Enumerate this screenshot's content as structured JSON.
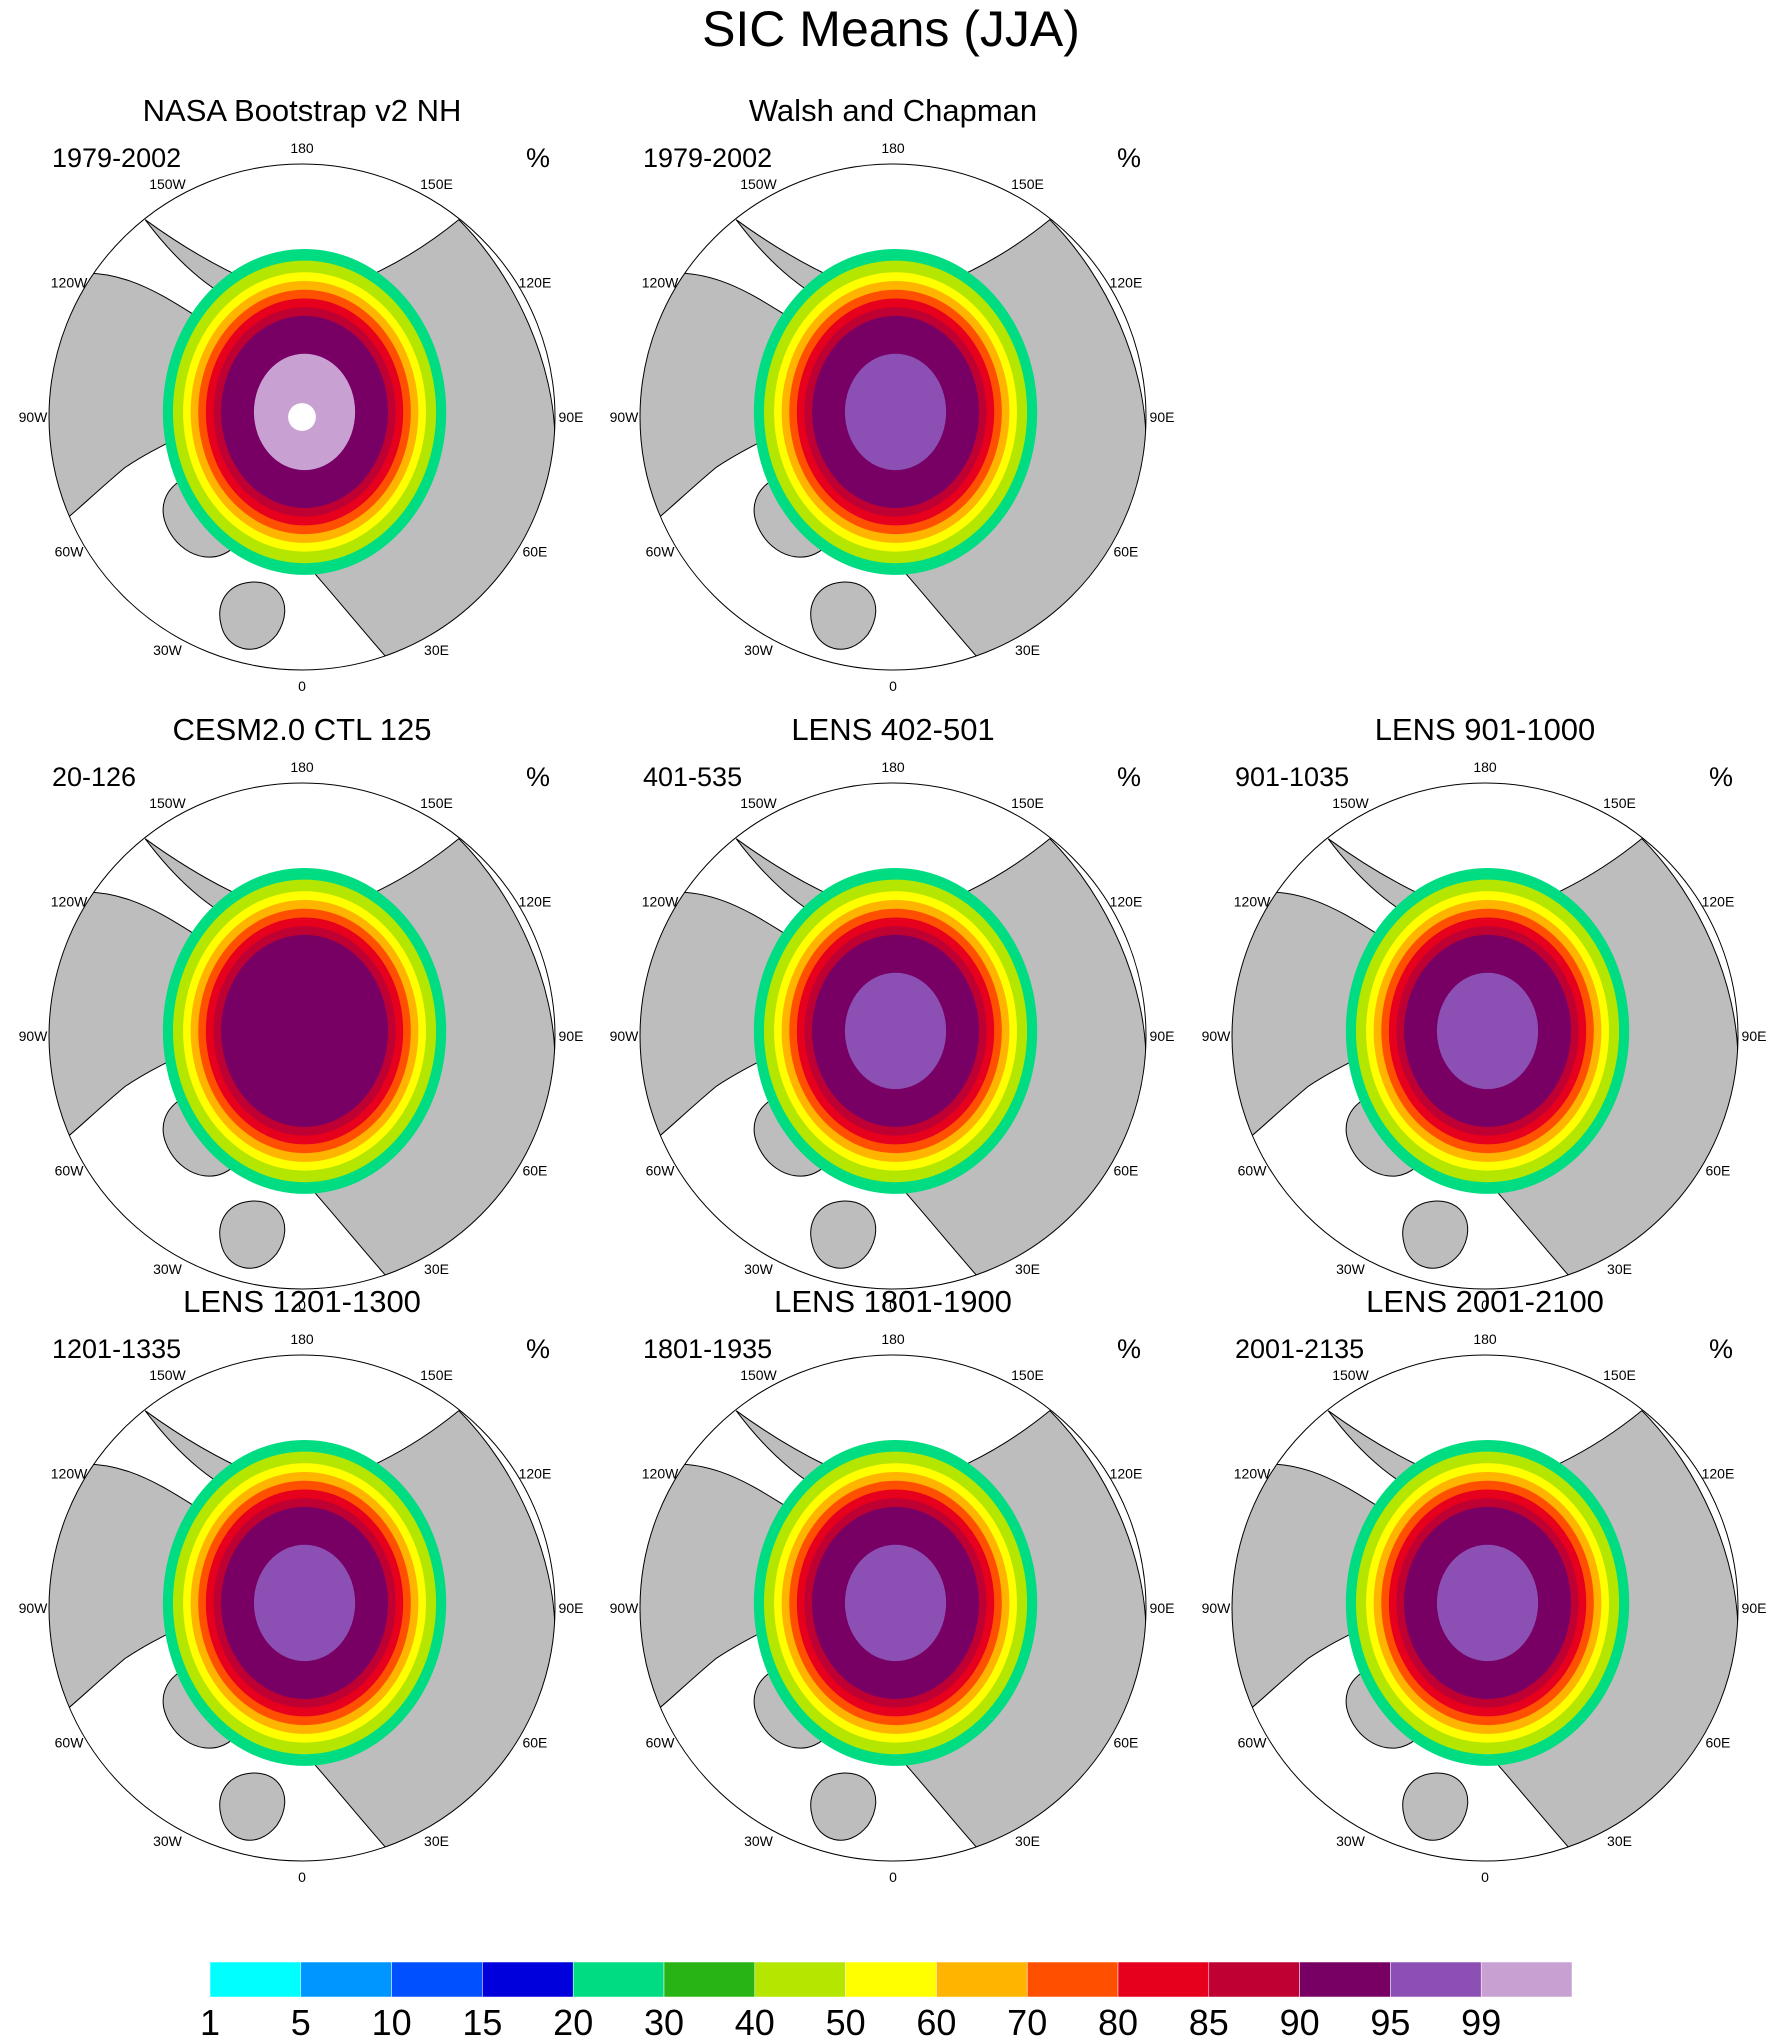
{
  "chart_data": {
    "type": "polar-stereographic map panels",
    "title": "SIC Means (JJA)",
    "units": "%",
    "longitude_labels": [
      "180",
      "150E",
      "120E",
      "90E",
      "60E",
      "30E",
      "0",
      "30W",
      "60W",
      "90W",
      "120W",
      "150W"
    ],
    "colorbar": {
      "levels": [
        "1",
        "5",
        "10",
        "15",
        "20",
        "30",
        "40",
        "50",
        "60",
        "70",
        "80",
        "85",
        "90",
        "95",
        "99"
      ],
      "colors": [
        "#00ffff",
        "#0096ff",
        "#0050ff",
        "#0000dc",
        "#00dc82",
        "#28b414",
        "#b4e600",
        "#ffff00",
        "#ffb400",
        "#ff5000",
        "#e6001e",
        "#be0032",
        "#780064",
        "#8c50b4",
        "#c8a0d2"
      ]
    },
    "panels": [
      {
        "title": "NASA Bootstrap v2 NH",
        "years": "1979-2002",
        "units": "%",
        "core_level": "99",
        "pole_hole": true
      },
      {
        "title": "Walsh and Chapman",
        "years": "1979-2002",
        "units": "%",
        "core_level": "95",
        "pole_hole": false
      },
      null,
      {
        "title": "CESM2.0 CTL 125",
        "years": "20-126",
        "units": "%",
        "core_level": "90",
        "pole_hole": false
      },
      {
        "title": "LENS 402-501",
        "years": "401-535",
        "units": "%",
        "core_level": "95",
        "pole_hole": false
      },
      {
        "title": "LENS 901-1000",
        "years": "901-1035",
        "units": "%",
        "core_level": "95",
        "pole_hole": false
      },
      {
        "title": "LENS 1201-1300",
        "years": "1201-1335",
        "units": "%",
        "core_level": "95",
        "pole_hole": false
      },
      {
        "title": "LENS 1801-1900",
        "years": "1801-1935",
        "units": "%",
        "core_level": "95",
        "pole_hole": false
      },
      {
        "title": "LENS 2001-2100",
        "years": "2001-2135",
        "units": "%",
        "core_level": "95",
        "pole_hole": false
      }
    ]
  },
  "colors": {
    "land": "#bdbdbd",
    "ocean": "#ffffff",
    "outline": "#000000"
  }
}
